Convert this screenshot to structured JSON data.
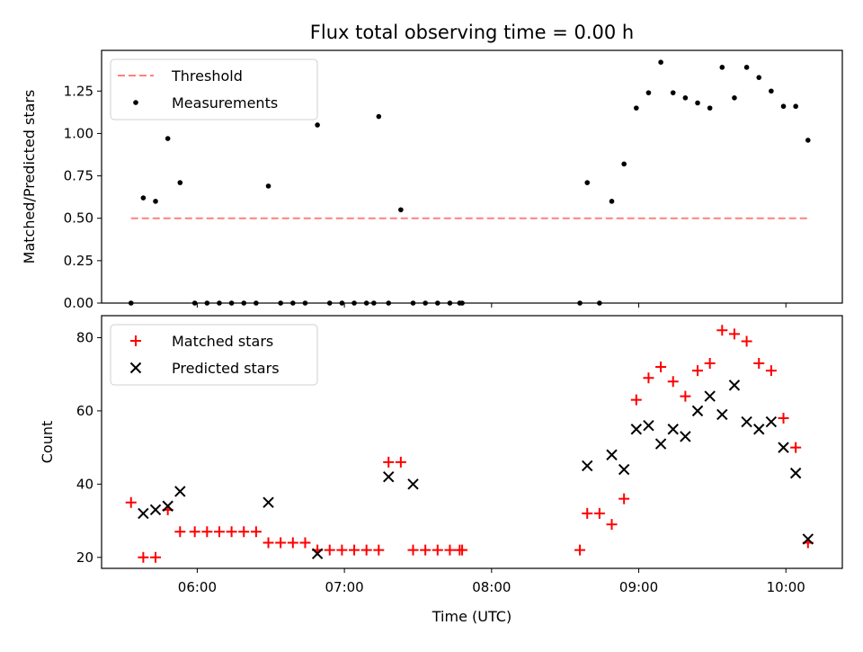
{
  "title": "Flux total observing time = 0.00 h",
  "chart_data": [
    {
      "type": "scatter",
      "ylabel": "Matched/Predicted stars",
      "xlabel": "",
      "xlim": [
        "05:21",
        "10:23"
      ],
      "ylim": [
        0,
        1.49
      ],
      "yticks": [
        "0.00",
        "0.25",
        "0.50",
        "0.75",
        "1.00",
        "1.25"
      ],
      "xticks": [
        "06:00",
        "07:00",
        "08:00",
        "09:00",
        "10:00"
      ],
      "legend": "top-left",
      "series": [
        {
          "name": "Threshold",
          "kind": "line",
          "color": "#ff8080",
          "x": [
            "05:33",
            "10:09"
          ],
          "y": [
            0.5,
            0.5
          ]
        },
        {
          "name": "Measurements",
          "kind": "scatter",
          "color": "#000000",
          "x": [
            "05:33",
            "05:38",
            "05:43",
            "05:48",
            "05:53",
            "05:59",
            "06:04",
            "06:09",
            "06:14",
            "06:19",
            "06:24",
            "06:29",
            "06:34",
            "06:39",
            "06:44",
            "06:49",
            "06:54",
            "06:59",
            "07:04",
            "07:09",
            "07:12",
            "07:14",
            "07:18",
            "07:23",
            "07:28",
            "07:33",
            "07:38",
            "07:43",
            "07:47",
            "07:48",
            "08:36",
            "08:39",
            "08:44",
            "08:49",
            "08:54",
            "08:59",
            "09:04",
            "09:09",
            "09:14",
            "09:19",
            "09:24",
            "09:29",
            "09:34",
            "09:39",
            "09:44",
            "09:49",
            "09:54",
            "09:59",
            "10:04",
            "10:09"
          ],
          "y": [
            0.0,
            0.62,
            0.6,
            0.97,
            0.71,
            0.0,
            0.0,
            0.0,
            0.0,
            0.0,
            0.0,
            0.69,
            0.0,
            0.0,
            0.0,
            1.05,
            0.0,
            0.0,
            0.0,
            0.0,
            0.0,
            1.1,
            0.0,
            0.55,
            0.0,
            0.0,
            0.0,
            0.0,
            0.0,
            0.0,
            0.0,
            0.71,
            0.0,
            0.6,
            0.82,
            1.15,
            1.24,
            1.42,
            1.24,
            1.21,
            1.18,
            1.15,
            1.39,
            1.21,
            1.39,
            1.33,
            1.25,
            1.16,
            1.16,
            0.96
          ]
        }
      ]
    },
    {
      "type": "scatter",
      "ylabel": "Count",
      "xlabel": "Time (UTC)",
      "xlim": [
        "05:21",
        "10:23"
      ],
      "ylim": [
        17,
        86
      ],
      "yticks": [
        "20",
        "40",
        "60",
        "80"
      ],
      "xticks": [
        "06:00",
        "07:00",
        "08:00",
        "09:00",
        "10:00"
      ],
      "legend": "top-left",
      "series": [
        {
          "name": "Matched stars",
          "marker": "plus",
          "color": "#ff0000",
          "x": [
            "05:33",
            "05:38",
            "05:43",
            "05:48",
            "05:53",
            "05:59",
            "06:04",
            "06:09",
            "06:14",
            "06:19",
            "06:24",
            "06:29",
            "06:34",
            "06:39",
            "06:44",
            "06:49",
            "06:54",
            "06:59",
            "07:04",
            "07:09",
            "07:14",
            "07:18",
            "07:23",
            "07:28",
            "07:33",
            "07:38",
            "07:43",
            "07:47",
            "07:48",
            "08:36",
            "08:39",
            "08:44",
            "08:49",
            "08:54",
            "08:59",
            "09:04",
            "09:09",
            "09:14",
            "09:19",
            "09:24",
            "09:29",
            "09:34",
            "09:39",
            "09:44",
            "09:49",
            "09:54",
            "09:59",
            "10:04",
            "10:09"
          ],
          "y": [
            35,
            20,
            20,
            33,
            27,
            27,
            27,
            27,
            27,
            27,
            27,
            24,
            24,
            24,
            24,
            22,
            22,
            22,
            22,
            22,
            22,
            46,
            46,
            22,
            22,
            22,
            22,
            22,
            22,
            22,
            32,
            32,
            29,
            36,
            63,
            69,
            72,
            68,
            64,
            71,
            73,
            82,
            81,
            79,
            73,
            71,
            58,
            50,
            24
          ]
        },
        {
          "name": "Predicted stars",
          "marker": "x",
          "color": "#000000",
          "x": [
            "05:38",
            "05:43",
            "05:48",
            "05:53",
            "06:29",
            "06:49",
            "07:18",
            "07:28",
            "08:39",
            "08:49",
            "08:54",
            "08:59",
            "09:04",
            "09:09",
            "09:14",
            "09:19",
            "09:24",
            "09:29",
            "09:34",
            "09:39",
            "09:44",
            "09:49",
            "09:54",
            "09:59",
            "10:04",
            "10:09"
          ],
          "y": [
            32,
            33,
            34,
            38,
            35,
            21,
            42,
            40,
            45,
            48,
            44,
            55,
            56,
            51,
            55,
            53,
            60,
            64,
            59,
            67,
            57,
            55,
            57,
            50,
            43,
            25
          ]
        }
      ]
    }
  ]
}
